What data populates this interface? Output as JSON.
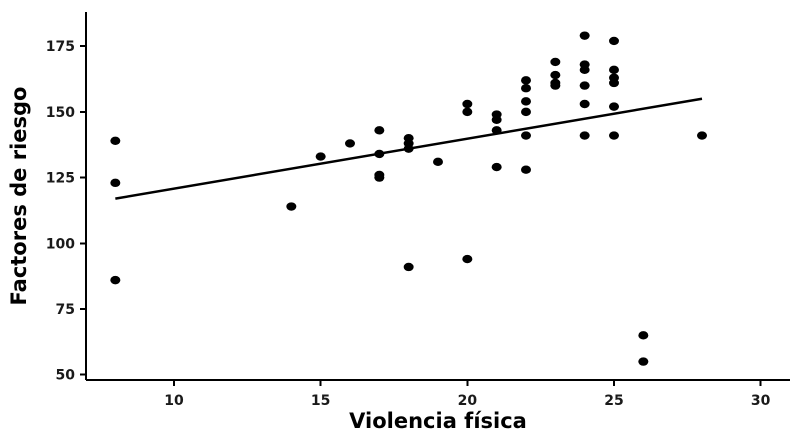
{
  "chart_data": {
    "type": "scatter",
    "title": "",
    "xlabel": "Violencia física",
    "ylabel": "Factores de riesgo",
    "xlim": [
      7,
      31
    ],
    "ylim": [
      48,
      188
    ],
    "xticks": [
      10,
      15,
      20,
      25,
      30
    ],
    "yticks": [
      50,
      75,
      100,
      125,
      150,
      175
    ],
    "grid": false,
    "legend": "none",
    "series": [
      {
        "points": [
          {
            "x": 8,
            "y": 139
          },
          {
            "x": 8,
            "y": 123
          },
          {
            "x": 8,
            "y": 86
          },
          {
            "x": 14,
            "y": 114
          },
          {
            "x": 15,
            "y": 133
          },
          {
            "x": 16,
            "y": 138
          },
          {
            "x": 17,
            "y": 143
          },
          {
            "x": 17,
            "y": 134
          },
          {
            "x": 17,
            "y": 126
          },
          {
            "x": 17,
            "y": 125
          },
          {
            "x": 18,
            "y": 140
          },
          {
            "x": 18,
            "y": 138
          },
          {
            "x": 18,
            "y": 136
          },
          {
            "x": 18,
            "y": 91
          },
          {
            "x": 19,
            "y": 131
          },
          {
            "x": 20,
            "y": 153
          },
          {
            "x": 20,
            "y": 150
          },
          {
            "x": 20,
            "y": 94
          },
          {
            "x": 21,
            "y": 149
          },
          {
            "x": 21,
            "y": 147
          },
          {
            "x": 21,
            "y": 143
          },
          {
            "x": 21,
            "y": 129
          },
          {
            "x": 22,
            "y": 162
          },
          {
            "x": 22,
            "y": 159
          },
          {
            "x": 22,
            "y": 154
          },
          {
            "x": 22,
            "y": 150
          },
          {
            "x": 22,
            "y": 141
          },
          {
            "x": 22,
            "y": 128
          },
          {
            "x": 23,
            "y": 169
          },
          {
            "x": 23,
            "y": 164
          },
          {
            "x": 23,
            "y": 161
          },
          {
            "x": 23,
            "y": 160
          },
          {
            "x": 24,
            "y": 179
          },
          {
            "x": 24,
            "y": 168
          },
          {
            "x": 24,
            "y": 166
          },
          {
            "x": 24,
            "y": 160
          },
          {
            "x": 24,
            "y": 153
          },
          {
            "x": 24,
            "y": 141
          },
          {
            "x": 25,
            "y": 177
          },
          {
            "x": 25,
            "y": 166
          },
          {
            "x": 25,
            "y": 163
          },
          {
            "x": 25,
            "y": 161
          },
          {
            "x": 25,
            "y": 152
          },
          {
            "x": 25,
            "y": 141
          },
          {
            "x": 26,
            "y": 65
          },
          {
            "x": 26,
            "y": 55
          },
          {
            "x": 28,
            "y": 141
          }
        ]
      }
    ],
    "trend_line": {
      "x": [
        8,
        28
      ],
      "y": [
        117,
        155
      ]
    },
    "colors": {
      "points": "#000000",
      "line": "#000000",
      "axes": "#000000",
      "background": "#ffffff"
    }
  }
}
